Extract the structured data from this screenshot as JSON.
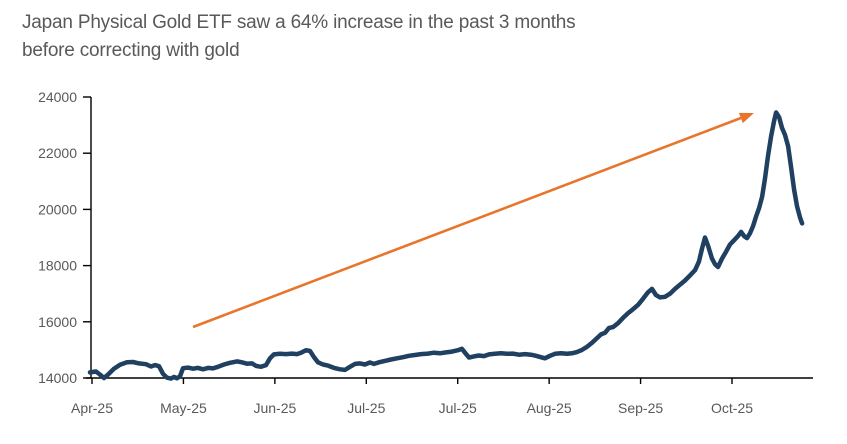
{
  "title": {
    "line1": "Japan Physical Gold ETF saw a 64% increase in the past 3 months",
    "line2": "before correcting with gold"
  },
  "colors": {
    "series_line": "#1F4060",
    "trend_arrow": "#E8752C",
    "axis": "#000000",
    "tick_text": "#595959",
    "title_text": "#595959",
    "background": "#FFFFFF"
  },
  "chart_data": {
    "type": "line",
    "title": "Japan Physical Gold ETF saw a 64% increase in the past 3 months before correcting with gold",
    "xlabel": "",
    "ylabel": "",
    "grid": false,
    "legend": false,
    "ylim": [
      14000,
      24000
    ],
    "y_ticks": [
      14000,
      16000,
      18000,
      20000,
      22000,
      24000
    ],
    "x_tick_labels": [
      "Apr-25",
      "May-25",
      "Jun-25",
      "Jul-25",
      "Jul-25",
      "Aug-25",
      "Sep-25",
      "Oct-25"
    ],
    "series": [
      {
        "name": "Japan Physical Gold ETF",
        "color": "#1F4060",
        "points": [
          [
            -0.022,
            14200
          ],
          [
            0.044,
            14230
          ],
          [
            0.087,
            14120
          ],
          [
            0.131,
            14000
          ],
          [
            0.175,
            14120
          ],
          [
            0.241,
            14330
          ],
          [
            0.306,
            14470
          ],
          [
            0.383,
            14560
          ],
          [
            0.448,
            14570
          ],
          [
            0.514,
            14520
          ],
          [
            0.591,
            14490
          ],
          [
            0.645,
            14410
          ],
          [
            0.689,
            14460
          ],
          [
            0.733,
            14420
          ],
          [
            0.777,
            14150
          ],
          [
            0.82,
            14010
          ],
          [
            0.864,
            13980
          ],
          [
            0.897,
            14040
          ],
          [
            0.93,
            13990
          ],
          [
            0.962,
            14060
          ],
          [
            0.995,
            14350
          ],
          [
            1.05,
            14370
          ],
          [
            1.105,
            14330
          ],
          [
            1.159,
            14360
          ],
          [
            1.214,
            14310
          ],
          [
            1.269,
            14360
          ],
          [
            1.323,
            14340
          ],
          [
            1.378,
            14400
          ],
          [
            1.444,
            14480
          ],
          [
            1.509,
            14540
          ],
          [
            1.586,
            14590
          ],
          [
            1.64,
            14560
          ],
          [
            1.695,
            14510
          ],
          [
            1.75,
            14520
          ],
          [
            1.794,
            14430
          ],
          [
            1.848,
            14400
          ],
          [
            1.903,
            14460
          ],
          [
            1.947,
            14700
          ],
          [
            1.99,
            14840
          ],
          [
            2.056,
            14860
          ],
          [
            2.122,
            14850
          ],
          [
            2.187,
            14870
          ],
          [
            2.242,
            14850
          ],
          [
            2.286,
            14900
          ],
          [
            2.34,
            14990
          ],
          [
            2.384,
            14960
          ],
          [
            2.428,
            14740
          ],
          [
            2.472,
            14560
          ],
          [
            2.526,
            14480
          ],
          [
            2.581,
            14440
          ],
          [
            2.647,
            14360
          ],
          [
            2.712,
            14310
          ],
          [
            2.767,
            14290
          ],
          [
            2.822,
            14400
          ],
          [
            2.876,
            14500
          ],
          [
            2.931,
            14520
          ],
          [
            2.986,
            14480
          ],
          [
            3.04,
            14550
          ],
          [
            3.084,
            14500
          ],
          [
            3.139,
            14560
          ],
          [
            3.204,
            14610
          ],
          [
            3.27,
            14660
          ],
          [
            3.336,
            14700
          ],
          [
            3.401,
            14740
          ],
          [
            3.467,
            14790
          ],
          [
            3.532,
            14820
          ],
          [
            3.598,
            14850
          ],
          [
            3.675,
            14870
          ],
          [
            3.74,
            14900
          ],
          [
            3.806,
            14880
          ],
          [
            3.872,
            14910
          ],
          [
            3.937,
            14940
          ],
          [
            4.003,
            14990
          ],
          [
            4.046,
            15040
          ],
          [
            4.09,
            14860
          ],
          [
            4.123,
            14730
          ],
          [
            4.178,
            14770
          ],
          [
            4.232,
            14800
          ],
          [
            4.287,
            14780
          ],
          [
            4.342,
            14840
          ],
          [
            4.407,
            14860
          ],
          [
            4.473,
            14880
          ],
          [
            4.539,
            14860
          ],
          [
            4.604,
            14870
          ],
          [
            4.67,
            14830
          ],
          [
            4.735,
            14850
          ],
          [
            4.801,
            14830
          ],
          [
            4.856,
            14790
          ],
          [
            4.91,
            14740
          ],
          [
            4.954,
            14700
          ],
          [
            5.009,
            14790
          ],
          [
            5.064,
            14860
          ],
          [
            5.129,
            14880
          ],
          [
            5.195,
            14860
          ],
          [
            5.25,
            14880
          ],
          [
            5.304,
            14920
          ],
          [
            5.359,
            15000
          ],
          [
            5.414,
            15110
          ],
          [
            5.468,
            15250
          ],
          [
            5.523,
            15420
          ],
          [
            5.567,
            15550
          ],
          [
            5.611,
            15610
          ],
          [
            5.655,
            15780
          ],
          [
            5.698,
            15810
          ],
          [
            5.753,
            15950
          ],
          [
            5.808,
            16140
          ],
          [
            5.863,
            16310
          ],
          [
            5.917,
            16450
          ],
          [
            5.972,
            16600
          ],
          [
            6.027,
            16820
          ],
          [
            6.081,
            17050
          ],
          [
            6.125,
            17170
          ],
          [
            6.169,
            16950
          ],
          [
            6.213,
            16870
          ],
          [
            6.267,
            16890
          ],
          [
            6.322,
            17000
          ],
          [
            6.377,
            17170
          ],
          [
            6.431,
            17320
          ],
          [
            6.486,
            17470
          ],
          [
            6.541,
            17650
          ],
          [
            6.596,
            17840
          ],
          [
            6.639,
            18150
          ],
          [
            6.672,
            18600
          ],
          [
            6.705,
            19000
          ],
          [
            6.738,
            18700
          ],
          [
            6.781,
            18250
          ],
          [
            6.814,
            18050
          ],
          [
            6.847,
            17950
          ],
          [
            6.891,
            18250
          ],
          [
            6.935,
            18500
          ],
          [
            6.978,
            18750
          ],
          [
            7.022,
            18900
          ],
          [
            7.066,
            19050
          ],
          [
            7.099,
            19200
          ],
          [
            7.132,
            19050
          ],
          [
            7.164,
            18980
          ],
          [
            7.197,
            19150
          ],
          [
            7.23,
            19400
          ],
          [
            7.263,
            19750
          ],
          [
            7.296,
            20050
          ],
          [
            7.329,
            20450
          ],
          [
            7.361,
            21100
          ],
          [
            7.394,
            21900
          ],
          [
            7.427,
            22600
          ],
          [
            7.46,
            23150
          ],
          [
            7.482,
            23450
          ],
          [
            7.515,
            23280
          ],
          [
            7.547,
            22900
          ],
          [
            7.58,
            22650
          ],
          [
            7.613,
            22250
          ],
          [
            7.646,
            21500
          ],
          [
            7.679,
            20700
          ],
          [
            7.712,
            20100
          ],
          [
            7.745,
            19700
          ],
          [
            7.767,
            19500
          ]
        ]
      }
    ],
    "annotation_arrow": {
      "from": [
        1.105,
        15815
      ],
      "to": [
        7.24,
        23430
      ],
      "color": "#E8752C"
    }
  }
}
